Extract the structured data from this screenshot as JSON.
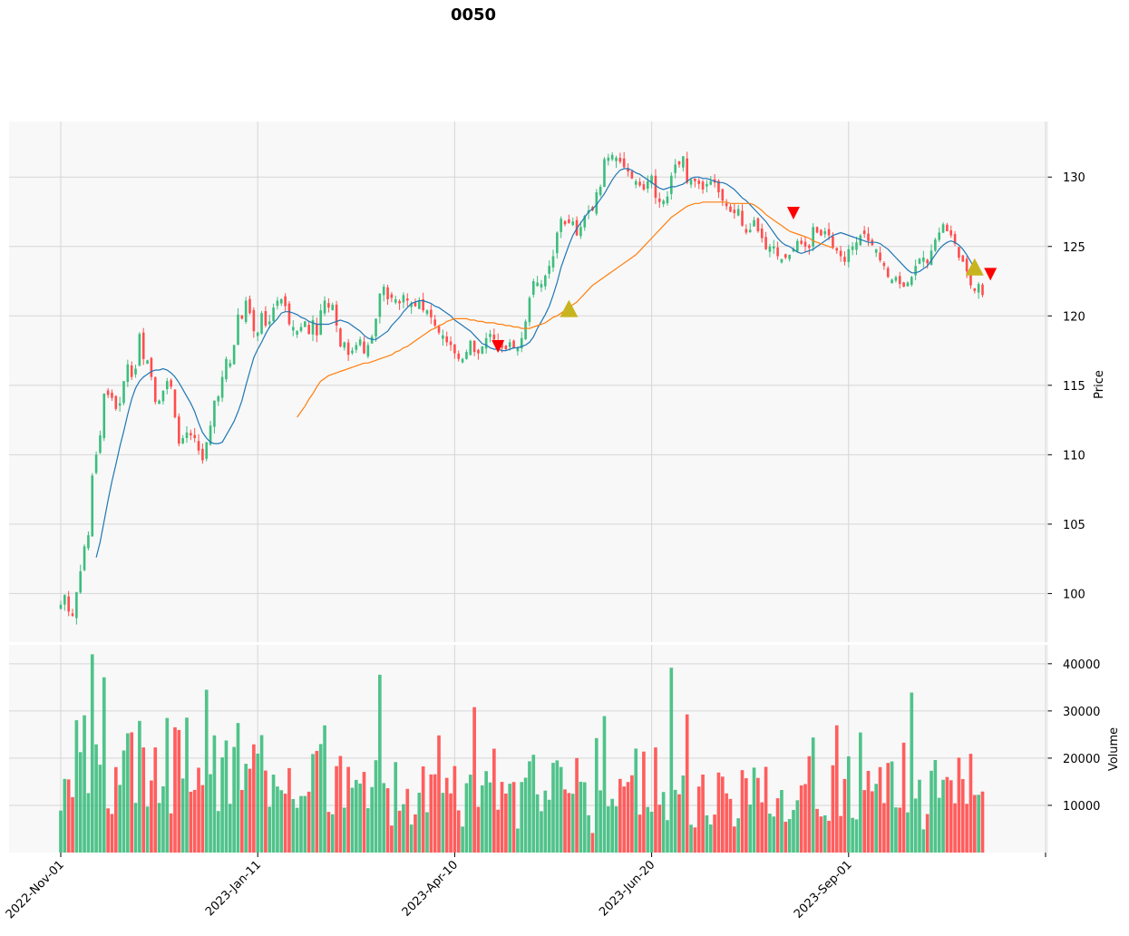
{
  "chart_data": {
    "type": "candlestick",
    "title": "0050",
    "price_panel": {
      "ylabel": "Price",
      "ylim": [
        96.5,
        134
      ],
      "yticks": [
        100,
        105,
        110,
        115,
        120,
        125,
        130
      ],
      "grid": true
    },
    "volume_panel": {
      "ylabel": "Volume",
      "ylim": [
        0,
        44000
      ],
      "yticks": [
        10000,
        20000,
        30000,
        40000
      ],
      "grid": true
    },
    "x_tick_labels": [
      "2022-Nov-01",
      "2023-Jan-11",
      "2023-Apr-10",
      "2023-Jun-20",
      "2023-Sep-01"
    ],
    "x_tick_positions": [
      0,
      50,
      100,
      150,
      200
    ],
    "colors": {
      "up": "#3dbd7d",
      "down": "#ff4d4d",
      "ma_short": "#1f77b4",
      "ma_long": "#ff7f0e",
      "buy_marker": "#c8b41e",
      "sell_marker": "#ff0000",
      "panel_bg": "#f8f8f8",
      "grid": "#d6d6d6"
    },
    "close": [
      99.2,
      99.9,
      98.7,
      98.4,
      100.1,
      101.6,
      103.4,
      104.2,
      108.5,
      110,
      111.4,
      114.4,
      114.3,
      114.1,
      113.3,
      113.7,
      115.3,
      116.5,
      115.6,
      116.2,
      118.7,
      116.9,
      116.8,
      115.6,
      113.8,
      113.9,
      114.6,
      115.3,
      114.9,
      112.7,
      110.8,
      111.2,
      111.6,
      111.4,
      111.2,
      110.3,
      109.6,
      110.9,
      112.1,
      113.9,
      114.2,
      115.6,
      116.9,
      116.6,
      117.9,
      120.1,
      119.8,
      121.1,
      120.2,
      118.9,
      118.8,
      120.2,
      119.3,
      119.6,
      120.6,
      121.1,
      121.2,
      120.7,
      119.4,
      119.2,
      118.9,
      119.2,
      119.6,
      118.7,
      119.7,
      118.6,
      120.4,
      121.1,
      120.6,
      120.8,
      119.3,
      117.8,
      118.1,
      117.2,
      117.5,
      117.9,
      118.3,
      117.3,
      117.9,
      118.5,
      119.8,
      121.6,
      122.1,
      121.2,
      121.3,
      121.2,
      120.9,
      121.5,
      121.1,
      120.9,
      120.7,
      121.1,
      120.4,
      120.4,
      119.9,
      119.3,
      118.8,
      118.6,
      118.1,
      117.9,
      117.3,
      116.9,
      116.9,
      117.4,
      118.2,
      117.4,
      117.3,
      117.8,
      118.4,
      118.7,
      118.3,
      118,
      117.7,
      117.6,
      118.1,
      117.7,
      117.7,
      118.4,
      119.6,
      121.3,
      122.5,
      122.4,
      122.3,
      122.9,
      123.6,
      124.3,
      126,
      127,
      126.6,
      126.7,
      126.8,
      125.8,
      126.4,
      127.2,
      127.6,
      127.6,
      128.9,
      129.3,
      131.3,
      131.4,
      131.6,
      131.4,
      131.1,
      130.7,
      130.4,
      129.9,
      129.7,
      129.4,
      129.1,
      129.7,
      130.1,
      128.5,
      128.2,
      128.3,
      128.6,
      130.1,
      130.9,
      130.9,
      131.5,
      129.6,
      129.8,
      129.7,
      129.5,
      129.1,
      129.5,
      129.7,
      129.6,
      128.9,
      128.3,
      127.9,
      127.5,
      127.4,
      127.7,
      126.5,
      126,
      126.2,
      126.9,
      126.1,
      125.6,
      124.8,
      125,
      125,
      124.3,
      124.1,
      124.2,
      124.4,
      124.8,
      125.4,
      125.2,
      125,
      124.9,
      126.4,
      126,
      125.8,
      126.1,
      125.8,
      124.9,
      124.7,
      124.3,
      123.9,
      124.8,
      125,
      125.3,
      125.8,
      125.9,
      125.4,
      125.1,
      124.8,
      124,
      123.6,
      122.8,
      122.6,
      122.8,
      122.3,
      122.1,
      122.4,
      122.8,
      123.6,
      124.1,
      124.2,
      123.8,
      124.7,
      125.5,
      126,
      126.6,
      126.1,
      125.8,
      125.2,
      124.2,
      123.9,
      123.2,
      122.2,
      121.8,
      122.3,
      121.5
    ],
    "ma_short": [
      null,
      null,
      null,
      null,
      null,
      null,
      null,
      null,
      null,
      102.6,
      103.7,
      105.2,
      106.7,
      108.1,
      109.3,
      110.6,
      111.7,
      112.9,
      114,
      114.8,
      115.3,
      115.6,
      115.8,
      116,
      116.1,
      116.1,
      116.2,
      116.1,
      115.9,
      115.6,
      115.2,
      114.7,
      114.2,
      113.7,
      113.1,
      112.3,
      111.6,
      111.2,
      110.9,
      110.8,
      110.8,
      110.9,
      111.4,
      111.9,
      112.4,
      113.1,
      113.9,
      115,
      116,
      117,
      117.6,
      118.1,
      118.7,
      119.2,
      119.5,
      119.8,
      120.2,
      120.3,
      120.3,
      120.2,
      120.1,
      119.9,
      119.8,
      119.6,
      119.5,
      119.4,
      119.4,
      119.4,
      119.4,
      119.5,
      119.6,
      119.7,
      119.6,
      119.5,
      119.3,
      119.1,
      118.9,
      118.6,
      118.4,
      118.3,
      118.3,
      118.5,
      118.7,
      118.9,
      119.3,
      119.6,
      119.9,
      120.3,
      120.6,
      120.9,
      121,
      121.1,
      121.1,
      121,
      120.9,
      120.7,
      120.6,
      120.4,
      120.2,
      120,
      119.7,
      119.5,
      119.3,
      119.1,
      118.9,
      118.6,
      118.3,
      118,
      117.9,
      117.7,
      117.6,
      117.6,
      117.5,
      117.5,
      117.6,
      117.7,
      117.7,
      117.8,
      117.9,
      118.1,
      118.5,
      119.1,
      119.6,
      120.1,
      120.7,
      121.5,
      122.4,
      123.5,
      124.3,
      125.1,
      125.8,
      126.3,
      126.7,
      127.1,
      127.5,
      127.7,
      128,
      128.4,
      128.8,
      129.3,
      129.8,
      130.2,
      130.5,
      130.6,
      130.6,
      130.5,
      130.3,
      130.2,
      130,
      129.8,
      129.6,
      129.4,
      129.2,
      129.1,
      129.2,
      129.3,
      129.3,
      129.4,
      129.5,
      129.7,
      129.9,
      130,
      130,
      129.9,
      129.9,
      129.8,
      129.7,
      129.6,
      129.6,
      129.5,
      129.3,
      129.1,
      128.8,
      128.5,
      128.3,
      128,
      127.7,
      127.4,
      127.1,
      126.8,
      126.4,
      126,
      125.6,
      125.3,
      125.1,
      125,
      124.8,
      124.6,
      124.5,
      124.6,
      124.7,
      124.8,
      125,
      125.2,
      125.4,
      125.6,
      125.8,
      125.9,
      126,
      125.9,
      125.8,
      125.7,
      125.6,
      125.5,
      125.4,
      125.3,
      125.3,
      125.3,
      125.2,
      125,
      124.8,
      124.5,
      124.2,
      123.9,
      123.6,
      123.3,
      123.1,
      123.1,
      123.2,
      123.4,
      123.6,
      124,
      124.4,
      124.8,
      125.1,
      125.3,
      125.4,
      125.3,
      125.1,
      124.8,
      124.4,
      123.9,
      123.4
    ],
    "ma_long": [
      null,
      null,
      null,
      null,
      null,
      null,
      null,
      null,
      null,
      null,
      null,
      null,
      null,
      null,
      null,
      null,
      null,
      null,
      null,
      null,
      null,
      null,
      null,
      null,
      null,
      null,
      null,
      null,
      null,
      null,
      null,
      null,
      null,
      null,
      null,
      null,
      null,
      null,
      null,
      null,
      null,
      null,
      null,
      null,
      null,
      null,
      null,
      null,
      null,
      null,
      null,
      null,
      null,
      null,
      null,
      null,
      null,
      null,
      null,
      null,
      112.7,
      113.1,
      113.5,
      114,
      114.4,
      114.9,
      115.3,
      115.5,
      115.7,
      115.8,
      115.9,
      116,
      116.1,
      116.2,
      116.3,
      116.4,
      116.5,
      116.6,
      116.6,
      116.7,
      116.8,
      116.9,
      117,
      117.1,
      117.2,
      117.4,
      117.5,
      117.7,
      117.8,
      118,
      118.2,
      118.4,
      118.6,
      118.8,
      119,
      119.1,
      119.3,
      119.4,
      119.6,
      119.7,
      119.8,
      119.8,
      119.8,
      119.8,
      119.7,
      119.7,
      119.6,
      119.6,
      119.5,
      119.5,
      119.5,
      119.4,
      119.4,
      119.3,
      119.3,
      119.2,
      119.2,
      119.1,
      119.1,
      119.1,
      119.2,
      119.3,
      119.4,
      119.5,
      119.7,
      119.9,
      120,
      120.2,
      120.4,
      120.6,
      120.8,
      121,
      121.3,
      121.6,
      121.9,
      122.2,
      122.4,
      122.6,
      122.8,
      123,
      123.2,
      123.4,
      123.6,
      123.8,
      124,
      124.2,
      124.4,
      124.7,
      125,
      125.3,
      125.6,
      125.9,
      126.2,
      126.5,
      126.8,
      127.1,
      127.3,
      127.5,
      127.7,
      127.9,
      128,
      128.1,
      128.1,
      128.2,
      128.2,
      128.2,
      128.2,
      128.2,
      128.2,
      128.2,
      128.1,
      128.1,
      128.1,
      128.1,
      128.1,
      128.1,
      128,
      127.8,
      127.6,
      127.3,
      127.1,
      126.9,
      126.7,
      126.5,
      126.3,
      126.1,
      126,
      125.9,
      125.8,
      125.7,
      125.6,
      125.4,
      125.3,
      125.2,
      125.1,
      125,
      124.9
    ],
    "signals": {
      "buy": [
        {
          "x": 129,
          "price": 120.5
        },
        {
          "x": 232,
          "price": 123.5
        }
      ],
      "sell": [
        {
          "x": 111,
          "price": 117.8
        },
        {
          "x": 186,
          "price": 127.4
        },
        {
          "x": 236,
          "price": 123
        }
      ]
    }
  }
}
